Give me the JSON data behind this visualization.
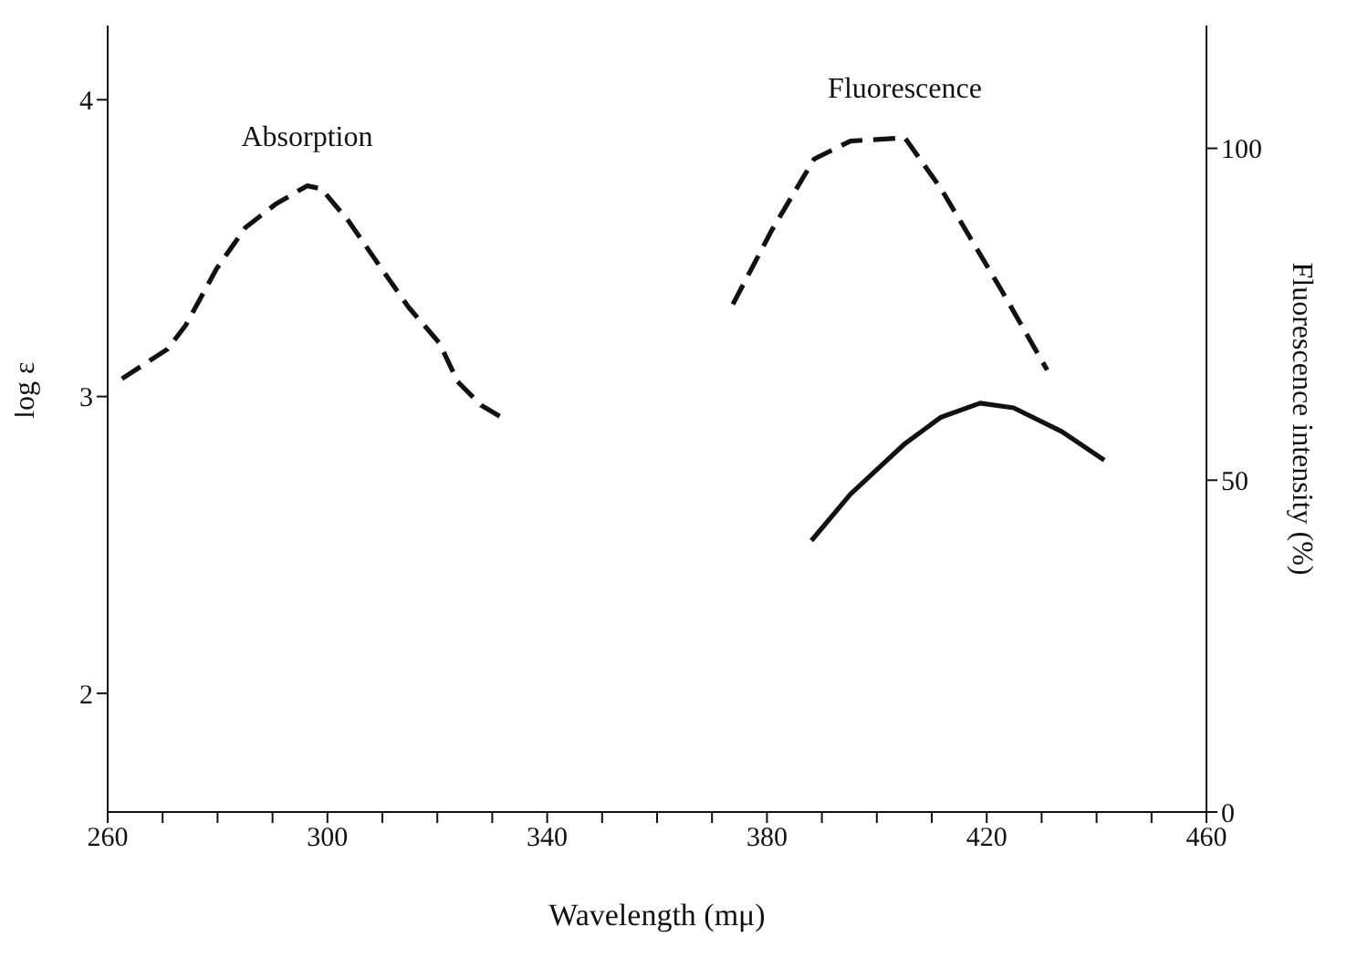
{
  "chart_data": {
    "type": "line",
    "xlabel": "Wavelength (mμ)",
    "ylabel": "log ε",
    "y2label": "Fluorescence intensity (%)",
    "xlim": [
      260,
      460
    ],
    "xticks": [
      260,
      {
        "value": 270,
        "label": null
      },
      {
        "value": 280,
        "label": null
      },
      {
        "value": 290,
        "label": null
      },
      300,
      {
        "value": 310,
        "label": null
      },
      {
        "value": 320,
        "label": null
      },
      {
        "value": 330,
        "label": null
      },
      340,
      {
        "value": 350,
        "label": null
      },
      {
        "value": 360,
        "label": null
      },
      {
        "value": 370,
        "label": null
      },
      380,
      {
        "value": 390,
        "label": null
      },
      {
        "value": 400,
        "label": null
      },
      {
        "value": 410,
        "label": null
      },
      420,
      {
        "value": 430,
        "label": null
      },
      {
        "value": 440,
        "label": null
      },
      {
        "value": 450,
        "label": null
      },
      460
    ],
    "ylim": [
      1.6,
      4.25
    ],
    "yticks": [
      2,
      3,
      4
    ],
    "y2lim": [
      0,
      118.5
    ],
    "y2ticks": [
      0,
      50,
      100
    ],
    "marker": "none",
    "annotations": [
      "Absorption",
      "Fluorescence"
    ],
    "series": [
      {
        "color": "#111111",
        "line_style": "dashed",
        "x": [
          262.6,
          270.9,
          274.2,
          279.8,
          285.1,
          290.7,
          296.3,
          298.9,
          303.9,
          309.5,
          314.8,
          320.4,
          323.7,
          328.0,
          332.6
        ],
        "values": [
          3.06,
          3.16,
          3.24,
          3.43,
          3.57,
          3.65,
          3.71,
          3.7,
          3.59,
          3.44,
          3.3,
          3.18,
          3.05,
          2.97,
          2.92
        ]
      },
      {
        "color": "#111111",
        "line_style": "dashed",
        "axis": "y2",
        "x": [
          373.8,
          380.9,
          388.6,
          395.2,
          405.1,
          411.7,
          422.7,
          431.0
        ],
        "values": [
          76.5,
          87.7,
          98.4,
          101.1,
          101.6,
          93.9,
          78.6,
          66.6
        ]
      },
      {
        "color": "#111111",
        "line_style": "solid",
        "axis": "y2",
        "x": [
          388.1,
          395.2,
          405.1,
          411.7,
          418.8,
          424.9,
          433.7,
          441.4
        ],
        "values": [
          40.9,
          47.9,
          55.5,
          59.5,
          61.6,
          60.9,
          57.3,
          53.0
        ]
      }
    ]
  }
}
